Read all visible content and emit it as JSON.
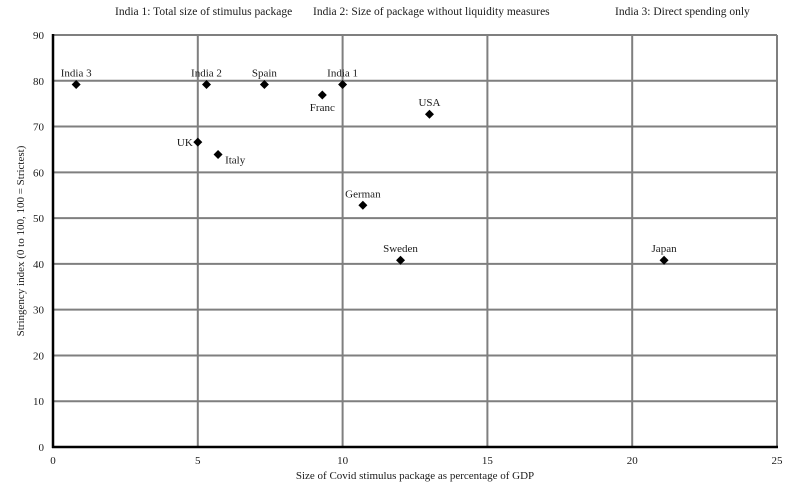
{
  "header": {
    "subtitles": [
      "India 1: Total size of stimulus package",
      "India 2: Size of package without liquidity measures",
      "India 3: Direct spending only"
    ]
  },
  "chart_data": {
    "type": "scatter",
    "title": "",
    "subtitles": [
      "India 1: Total size of stimulus package",
      "India 2: Size of package without liquidity measures",
      "India 3: Direct spending only"
    ],
    "xlabel": "Size of Covid stimulus package as percentage of GDP",
    "ylabel": "Stringency index (0 to 100, 100 = Strictest)",
    "xlim": [
      0,
      25
    ],
    "ylim": [
      0,
      90
    ],
    "xticks": [
      0,
      5,
      10,
      15,
      20,
      25
    ],
    "yticks": [
      0,
      10,
      20,
      30,
      40,
      50,
      60,
      70,
      80,
      90
    ],
    "grid": true,
    "legend": null,
    "marker": "diamond",
    "points": [
      {
        "label": "India 3",
        "x": 0.8,
        "y": 79.2,
        "label_pos": "above"
      },
      {
        "label": "India 2",
        "x": 5.3,
        "y": 79.2,
        "label_pos": "above"
      },
      {
        "label": "Spain",
        "x": 7.3,
        "y": 79.2,
        "label_pos": "above"
      },
      {
        "label": "India  1",
        "x": 10.0,
        "y": 79.2,
        "label_pos": "above"
      },
      {
        "label": "Franc",
        "x": 9.3,
        "y": 76.9,
        "label_pos": "below"
      },
      {
        "label": "USA",
        "x": 13.0,
        "y": 72.7,
        "label_pos": "above"
      },
      {
        "label": "UK",
        "x": 5.0,
        "y": 66.6,
        "label_pos": "left"
      },
      {
        "label": "Italy",
        "x": 5.7,
        "y": 63.9,
        "label_pos": "right"
      },
      {
        "label": "German",
        "x": 10.7,
        "y": 52.8,
        "label_pos": "above"
      },
      {
        "label": "Sweden",
        "x": 12.0,
        "y": 40.8,
        "label_pos": "above"
      },
      {
        "label": "Japan",
        "x": 21.1,
        "y": 40.8,
        "label_pos": "above"
      }
    ]
  }
}
